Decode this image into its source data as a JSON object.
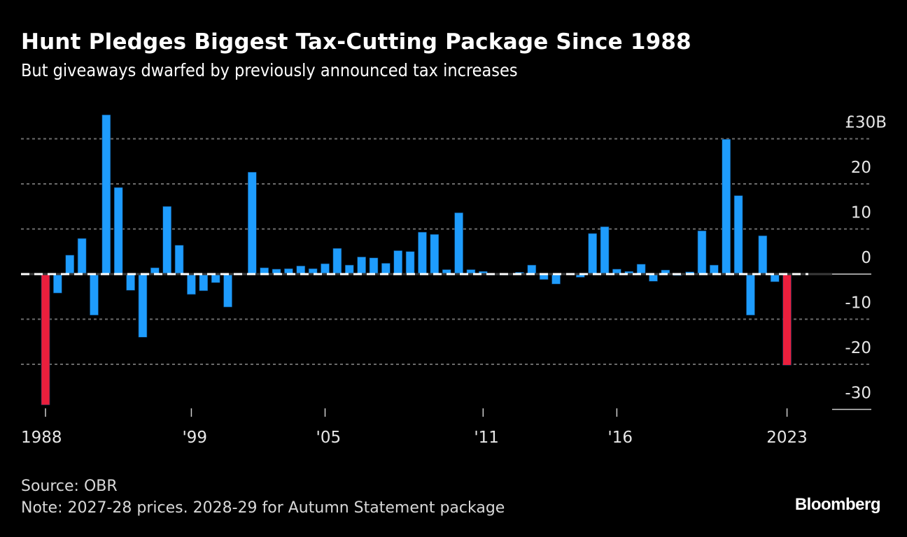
{
  "header": {
    "title": "Hunt Pledges Biggest Tax-Cutting Package Since 1988",
    "subtitle": "But giveaways dwarfed by previously announced tax increases"
  },
  "footer": {
    "source": "Source: OBR",
    "note": "Note: 2027-28 prices. 2028-29 for Autumn Statement package",
    "brand": "Bloomberg"
  },
  "colors": {
    "background": "#000000",
    "bar": "#1e9cfd",
    "highlight": "#ea1f3d",
    "grid": "#6b6b6b",
    "text": "#e6e6e6"
  },
  "chart_data": {
    "type": "bar",
    "title": "Hunt Pledges Biggest Tax-Cutting Package Since 1988",
    "subtitle": "But giveaways dwarfed by previously announced tax increases",
    "xlabel": "",
    "ylabel": "£B",
    "ylim": [
      -30,
      30
    ],
    "yticks": [
      30,
      20,
      10,
      0,
      -10,
      -20,
      -30
    ],
    "ytick_labels": [
      "£30B",
      "20",
      "10",
      "0",
      "-10",
      "-20",
      "-30"
    ],
    "y_axis_position": "right",
    "grid": true,
    "xtick_labels": [
      {
        "index": 0,
        "label": "1988"
      },
      {
        "index": 12,
        "label": "'99"
      },
      {
        "index": 23,
        "label": "'05"
      },
      {
        "index": 36,
        "label": "'11"
      },
      {
        "index": 47,
        "label": "'16"
      },
      {
        "index": 61,
        "label": "2023"
      }
    ],
    "highlighted_indices": [
      0,
      61
    ],
    "values": [
      -29.0,
      -4.2,
      4.2,
      7.9,
      -9.1,
      35.3,
      19.2,
      -3.6,
      -14.0,
      1.4,
      15.0,
      6.4,
      -4.5,
      -3.7,
      -1.9,
      -7.3,
      0.2,
      22.6,
      1.4,
      1.1,
      1.2,
      1.8,
      1.2,
      2.3,
      5.7,
      2.0,
      3.8,
      3.6,
      2.4,
      5.2,
      5.0,
      9.3,
      8.8,
      1.0,
      13.6,
      1.0,
      0.6,
      -0.2,
      -0.2,
      0.4,
      2.0,
      -1.2,
      -2.2,
      -0.1,
      -0.7,
      9.0,
      10.5,
      1.1,
      0.6,
      2.2,
      -1.6,
      0.9,
      -0.3,
      0.5,
      9.6,
      2.0,
      29.9,
      17.4,
      -9.1,
      8.5,
      -1.7,
      -20.2
    ]
  }
}
